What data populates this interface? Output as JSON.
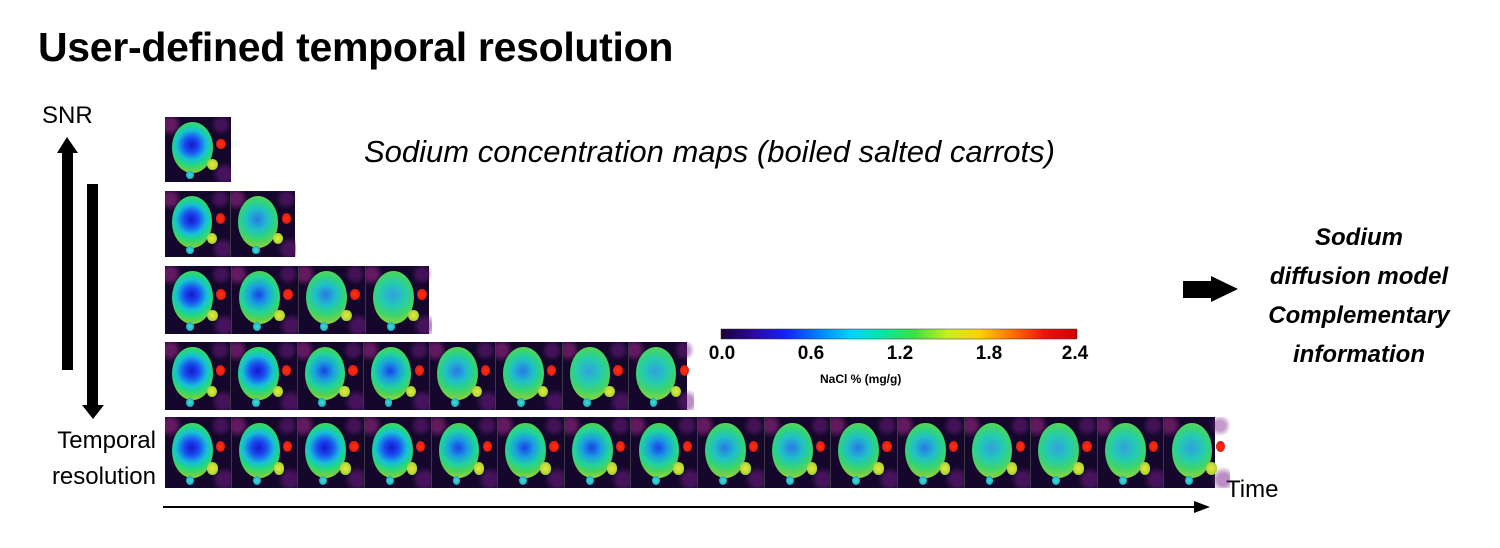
{
  "title": "User-defined temporal resolution",
  "subtitle": "Sodium concentration maps (boiled salted carrots)",
  "axis_labels": {
    "snr": "SNR",
    "temporal_resolution": "Temporal resolution",
    "temporal_line1": "Temporal",
    "temporal_line2": "resolution",
    "time": "Time"
  },
  "side_text": {
    "line1": "Sodium",
    "line2": "diffusion  model",
    "line3": "Complementary",
    "line4": "information"
  },
  "colorbar": {
    "ticks": [
      "0.0",
      "0.6",
      "1.2",
      "1.8",
      "2.4"
    ],
    "unit_label": "NaCl % (mg/g)",
    "colormap": [
      "#1b0038",
      "#2b0a9c",
      "#1420ff",
      "#0080ff",
      "#00d4ff",
      "#00e8a0",
      "#40e040",
      "#c8f020",
      "#ffd000",
      "#ff7000",
      "#f01010",
      "#d00000"
    ]
  },
  "strips": [
    {
      "frames": 1
    },
    {
      "frames": 2
    },
    {
      "frames": 4
    },
    {
      "frames": 8
    },
    {
      "frames": 16
    }
  ],
  "colors": {
    "background": "#ffffff",
    "arrow": "#000000",
    "image_background": "#15072b"
  }
}
